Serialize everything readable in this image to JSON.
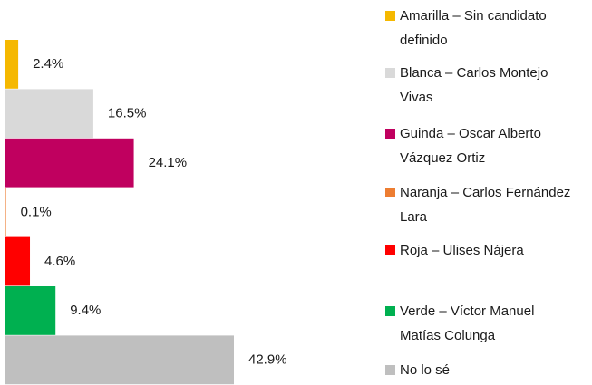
{
  "chart_data": {
    "type": "bar",
    "orientation": "horizontal",
    "categories": [
      "Amarilla – Sin candidato definido",
      "Blanca – Carlos Montejo Vivas",
      "Guinda – Oscar Alberto Vázquez Ortiz",
      "Naranja – Carlos Fernández Lara",
      "Roja – Ulises Nájera",
      "Verde – Víctor Manuel Matías Colunga",
      "No lo sé"
    ],
    "values": [
      2.4,
      16.5,
      24.1,
      0.1,
      4.6,
      9.4,
      42.9
    ],
    "value_labels": [
      "2.4%",
      "16.5%",
      "24.1%",
      "0.1%",
      "4.6%",
      "9.4%",
      "42.9%"
    ],
    "colors": [
      "#f5b800",
      "#d9d9d9",
      "#c0005f",
      "#ed7d31",
      "#ff0000",
      "#00b050",
      "#bfbfbf"
    ],
    "legend": "right"
  }
}
